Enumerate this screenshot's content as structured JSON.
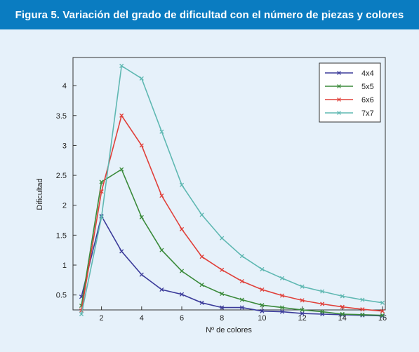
{
  "figure": {
    "title": "Figura 5. Variación del grado de dificultad con el número de piezas y colores"
  },
  "chart_data": {
    "type": "line",
    "xlabel": "Nº de colores",
    "ylabel": "Dificultad",
    "xlim": [
      0.5,
      16
    ],
    "ylim": [
      0.25,
      4.4
    ],
    "xticks": [
      2,
      4,
      6,
      8,
      10,
      12,
      14,
      16
    ],
    "yticks": [
      0.5,
      1,
      1.5,
      2,
      2.5,
      3,
      3.5,
      4
    ],
    "xtick_labels": [
      "2",
      "4",
      "6",
      "8",
      "10",
      "12",
      "14",
      "16"
    ],
    "ytick_labels": [
      "0.5",
      "1",
      "1.5",
      "2",
      "2.5",
      "3",
      "3.5",
      "4"
    ],
    "grid": false,
    "legend_position": "top-right",
    "marker": "x",
    "x": [
      1,
      2,
      3,
      4,
      5,
      6,
      7,
      8,
      9,
      10,
      11,
      12,
      13,
      14,
      15,
      16
    ],
    "series": [
      {
        "name": "4x4",
        "color": "#3b3b9a",
        "values": [
          0.47,
          1.82,
          1.23,
          0.84,
          0.59,
          0.51,
          0.37,
          0.29,
          0.29,
          0.23,
          0.22,
          0.19,
          0.18,
          0.17,
          0.16,
          0.15
        ]
      },
      {
        "name": "5x5",
        "color": "#3a8a3a",
        "values": [
          0.32,
          2.39,
          2.6,
          1.8,
          1.25,
          0.9,
          0.67,
          0.52,
          0.42,
          0.33,
          0.29,
          0.25,
          0.22,
          0.18,
          0.17,
          0.16
        ]
      },
      {
        "name": "6x6",
        "color": "#e0403a",
        "values": [
          0.24,
          2.23,
          3.5,
          3.0,
          2.16,
          1.6,
          1.14,
          0.92,
          0.73,
          0.59,
          0.49,
          0.41,
          0.35,
          0.3,
          0.26,
          0.23
        ]
      },
      {
        "name": "7x7",
        "color": "#5fb8b2",
        "values": [
          0.18,
          1.8,
          4.33,
          4.12,
          3.23,
          2.34,
          1.84,
          1.45,
          1.15,
          0.93,
          0.78,
          0.64,
          0.56,
          0.48,
          0.42,
          0.37
        ]
      }
    ]
  }
}
